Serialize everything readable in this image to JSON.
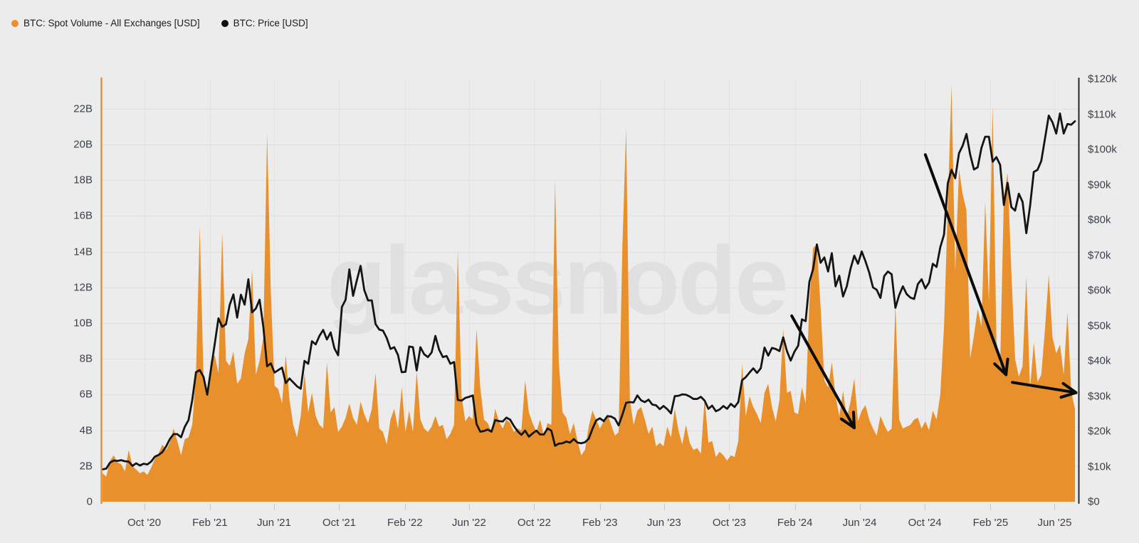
{
  "legend": {
    "items": [
      {
        "label": "BTC: Spot Volume - All Exchanges [USD]",
        "color": "#E8912C"
      },
      {
        "label": "BTC: Price [USD]",
        "color": "#111111"
      }
    ]
  },
  "watermark": "glassnode",
  "colors": {
    "background": "#ececec",
    "gridline": "#dfdfdf",
    "vertical_gridline": "#e3e3e3",
    "volume_fill": "#E8912C",
    "price_line": "#141414",
    "left_axis_line": "#E8912C",
    "right_axis_line": "#26282b",
    "tick_text": "#3c414b",
    "annotation": "#0b0b0b"
  },
  "chart_data": {
    "type": "area+line",
    "time_domain": [
      "2020-07-15",
      "2025-07-09"
    ],
    "x_axis": {
      "ticks": [
        {
          "date": "2020-10-01",
          "label": "Oct '20"
        },
        {
          "date": "2021-02-01",
          "label": "Feb '21"
        },
        {
          "date": "2021-06-01",
          "label": "Jun '21"
        },
        {
          "date": "2021-10-01",
          "label": "Oct '21"
        },
        {
          "date": "2022-02-01",
          "label": "Feb '22"
        },
        {
          "date": "2022-06-01",
          "label": "Jun '22"
        },
        {
          "date": "2022-10-01",
          "label": "Oct '22"
        },
        {
          "date": "2023-02-01",
          "label": "Feb '23"
        },
        {
          "date": "2023-06-01",
          "label": "Jun '23"
        },
        {
          "date": "2023-10-01",
          "label": "Oct '23"
        },
        {
          "date": "2024-02-01",
          "label": "Feb '24"
        },
        {
          "date": "2024-06-01",
          "label": "Jun '24"
        },
        {
          "date": "2024-10-01",
          "label": "Oct '24"
        },
        {
          "date": "2025-02-01",
          "label": "Feb '25"
        },
        {
          "date": "2025-06-01",
          "label": "Jun '25"
        }
      ]
    },
    "left_axis": {
      "title": "BTC: Spot Volume - All Exchanges [USD]",
      "unit": "billions USD per day",
      "max": 23.7,
      "ticks": [
        {
          "value": 22,
          "label": "22B"
        },
        {
          "value": 20,
          "label": "20B"
        },
        {
          "value": 18,
          "label": "18B"
        },
        {
          "value": 16,
          "label": "16B"
        },
        {
          "value": 14,
          "label": "14B"
        },
        {
          "value": 12,
          "label": "12B"
        },
        {
          "value": 10,
          "label": "10B"
        },
        {
          "value": 8,
          "label": "8B"
        },
        {
          "value": 6,
          "label": "6B"
        },
        {
          "value": 4,
          "label": "4B"
        },
        {
          "value": 2,
          "label": "2B"
        },
        {
          "value": 0,
          "label": "0"
        }
      ]
    },
    "right_axis": {
      "title": "BTC: Price [USD]",
      "unit": "thousands USD",
      "max": 120.3,
      "ticks": [
        {
          "value": 120,
          "label": "$120k"
        },
        {
          "value": 110,
          "label": "$110k"
        },
        {
          "value": 100,
          "label": "$100k"
        },
        {
          "value": 90,
          "label": "$90k"
        },
        {
          "value": 80,
          "label": "$80k"
        },
        {
          "value": 70,
          "label": "$70k"
        },
        {
          "value": 60,
          "label": "$60k"
        },
        {
          "value": 50,
          "label": "$50k"
        },
        {
          "value": 40,
          "label": "$40k"
        },
        {
          "value": 30,
          "label": "$30k"
        },
        {
          "value": 20,
          "label": "$20k"
        },
        {
          "value": 10,
          "label": "$10k"
        },
        {
          "value": 0,
          "label": "$0"
        }
      ]
    },
    "series": [
      {
        "name": "BTC: Spot Volume - All Exchanges [USD]",
        "type": "area",
        "axis": "left",
        "color": "#E8912C",
        "start_date": "2020-07-15",
        "step_days": 7,
        "values": [
          1.6,
          1.4,
          2.3,
          2.6,
          2.2,
          2.1,
          1.7,
          2.9,
          2.0,
          1.8,
          1.6,
          1.7,
          1.5,
          1.9,
          2.4,
          2.7,
          3.2,
          2.9,
          3.3,
          4.1,
          3.4,
          2.6,
          3.5,
          3.6,
          4.3,
          7.2,
          15.4,
          7.0,
          6.1,
          7.9,
          8.2,
          7.2,
          15.1,
          7.9,
          7.6,
          8.4,
          6.6,
          6.9,
          8.3,
          9.1,
          13.0,
          7.1,
          7.9,
          9.2,
          20.6,
          11.8,
          6.5,
          6.3,
          5.5,
          8.2,
          5.7,
          4.3,
          3.6,
          4.8,
          7.2,
          5.0,
          6.1,
          4.8,
          4.3,
          4.1,
          7.8,
          5.0,
          5.3,
          3.9,
          4.2,
          4.7,
          5.5,
          4.7,
          4.3,
          5.6,
          4.9,
          4.4,
          5.2,
          7.2,
          4.1,
          3.9,
          3.2,
          4.6,
          5.2,
          4.1,
          6.4,
          3.9,
          5.1,
          3.9,
          7.3,
          4.6,
          4.1,
          3.9,
          4.2,
          4.8,
          4.2,
          4.3,
          3.5,
          3.8,
          4.3,
          14.1,
          5.9,
          4.5,
          4.8,
          4.6,
          9.7,
          6.4,
          4.6,
          4.4,
          3.9,
          5.2,
          4.5,
          4.1,
          4.6,
          4.4,
          3.9,
          4.1,
          4.0,
          6.8,
          5.0,
          4.4,
          3.9,
          4.6,
          3.7,
          4.4,
          4.3,
          18.0,
          7.8,
          5.0,
          4.7,
          3.8,
          4.4,
          3.4,
          2.6,
          2.9,
          4.2,
          5.1,
          4.6,
          4.1,
          4.5,
          4.9,
          4.3,
          3.7,
          3.9,
          14.3,
          20.9,
          5.7,
          4.3,
          5.1,
          5.3,
          4.6,
          3.8,
          4.2,
          3.1,
          3.3,
          3.1,
          4.2,
          3.6,
          5.2,
          4.0,
          3.2,
          4.3,
          3.3,
          2.9,
          3.0,
          2.7,
          5.8,
          3.3,
          3.4,
          2.5,
          2.8,
          2.6,
          2.3,
          2.6,
          2.5,
          3.4,
          7.7,
          4.8,
          5.9,
          5.3,
          4.9,
          4.4,
          6.1,
          6.6,
          5.3,
          4.5,
          5.7,
          9.7,
          6.1,
          6.2,
          5.0,
          4.9,
          6.4,
          5.5,
          11.2,
          14.2,
          14.4,
          10.9,
          6.8,
          6.4,
          7.8,
          5.9,
          4.8,
          6.2,
          4.7,
          5.6,
          6.9,
          4.5,
          5.1,
          5.4,
          4.6,
          4.1,
          3.7,
          4.8,
          4.3,
          3.9,
          4.1,
          11.1,
          4.6,
          4.1,
          4.2,
          4.3,
          4.6,
          4.7,
          4.1,
          4.5,
          4.0,
          5.1,
          4.6,
          6.0,
          9.8,
          16.5,
          23.3,
          12.9,
          18.6,
          17.2,
          16.3,
          8.0,
          9.3,
          10.8,
          9.8,
          16.8,
          11.2,
          22.2,
          9.0,
          7.6,
          17.1,
          18.4,
          12.9,
          8.0,
          7.0,
          7.6,
          12.6,
          6.3,
          8.9,
          6.7,
          7.1,
          9.7,
          12.7,
          9.2,
          8.3,
          8.8,
          7.1,
          10.6,
          6.2,
          5.2
        ]
      },
      {
        "name": "BTC: Price [USD]",
        "type": "line",
        "axis": "right",
        "color": "#141414",
        "start_date": "2020-07-15",
        "step_days": 7,
        "values": [
          9.2,
          9.4,
          11.1,
          11.7,
          11.6,
          11.8,
          11.5,
          11.4,
          10.2,
          10.9,
          10.3,
          10.8,
          10.6,
          11.4,
          12.8,
          13.3,
          14.1,
          15.7,
          17.8,
          19.2,
          19.2,
          18.3,
          21.3,
          23.2,
          28.9,
          36.8,
          37.4,
          35.5,
          30.4,
          37.7,
          44.8,
          52.1,
          49.7,
          50.4,
          55.9,
          58.9,
          52.3,
          58.8,
          56.0,
          63.2,
          53.8,
          54.9,
          57.4,
          49.7,
          38.5,
          39.3,
          36.7,
          37.4,
          38.1,
          33.7,
          35.0,
          33.9,
          32.8,
          32.1,
          40.0,
          39.2,
          45.6,
          44.7,
          47.1,
          48.8,
          46.1,
          48.1,
          43.6,
          41.6,
          55.3,
          57.4,
          66.0,
          58.5,
          62.9,
          67.0,
          60.1,
          57.2,
          57.2,
          50.5,
          48.9,
          48.6,
          46.5,
          43.4,
          43.9,
          41.7,
          36.8,
          36.9,
          44.1,
          43.9,
          37.3,
          43.9,
          41.9,
          41.1,
          42.4,
          47.1,
          43.2,
          41.1,
          41.4,
          39.2,
          39.7,
          28.9,
          28.7,
          29.5,
          29.8,
          30.2,
          22.1,
          19.9,
          20.1,
          20.5,
          19.9,
          23.2,
          22.9,
          22.8,
          23.9,
          23.3,
          21.5,
          20.0,
          19.0,
          20.2,
          18.5,
          19.4,
          20.2,
          19.1,
          19.1,
          20.8,
          20.2,
          15.9,
          16.5,
          16.6,
          17.1,
          16.8,
          17.8,
          16.8,
          16.6,
          16.9,
          17.9,
          20.7,
          23.1,
          23.7,
          22.9,
          24.3,
          24.2,
          23.6,
          21.7,
          24.7,
          28.1,
          28.3,
          28.2,
          30.2,
          28.8,
          28.3,
          29.0,
          27.6,
          27.4,
          26.3,
          27.2,
          26.3,
          25.1,
          30.0,
          30.1,
          30.5,
          30.4,
          29.9,
          29.2,
          29.2,
          29.8,
          28.7,
          26.4,
          27.3,
          25.7,
          26.2,
          27.2,
          26.4,
          27.8,
          26.9,
          28.3,
          34.5,
          35.4,
          36.7,
          37.9,
          36.6,
          37.9,
          43.8,
          41.5,
          43.7,
          43.4,
          42.8,
          46.7,
          42.8,
          40.1,
          42.6,
          44.3,
          51.8,
          51.3,
          62.5,
          66.1,
          73.1,
          67.9,
          69.4,
          65.4,
          70.6,
          61.2,
          64.2,
          58.3,
          61.2,
          66.2,
          69.9,
          67.6,
          71.1,
          68.3,
          65.1,
          60.9,
          60.2,
          57.9,
          64.1,
          65.4,
          64.6,
          55.1,
          58.7,
          61.2,
          59.0,
          58.0,
          57.6,
          61.8,
          63.2,
          60.6,
          62.3,
          67.6,
          66.7,
          72.3,
          75.9,
          90.4,
          94.3,
          91.9,
          99.0,
          101.2,
          104.5,
          98.6,
          94.4,
          95.0,
          100.5,
          103.7,
          103.7,
          96.6,
          97.9,
          95.7,
          84.3,
          90.6,
          83.7,
          82.7,
          87.5,
          85.2,
          76.3,
          84.0,
          93.7,
          94.3,
          96.8,
          103.2,
          109.7,
          107.8,
          104.6,
          110.3,
          104.6,
          107.3,
          107.1,
          108.1
        ]
      }
    ],
    "annotations": {
      "arrows": [
        {
          "name": "downtrend-arrow-1",
          "from": {
            "t": "2024-01-26",
            "v": 52.8
          },
          "to": {
            "t": "2024-05-22",
            "v": 21.0
          }
        },
        {
          "name": "downtrend-arrow-2",
          "from": {
            "t": "2024-10-02",
            "v": 98.6
          },
          "to": {
            "t": "2025-03-02",
            "v": 36.1
          }
        },
        {
          "name": "downtrend-arrow-3",
          "from": {
            "t": "2025-03-14",
            "v": 33.9
          },
          "to": {
            "t": "2025-07-11",
            "v": 31.0
          }
        }
      ]
    }
  }
}
